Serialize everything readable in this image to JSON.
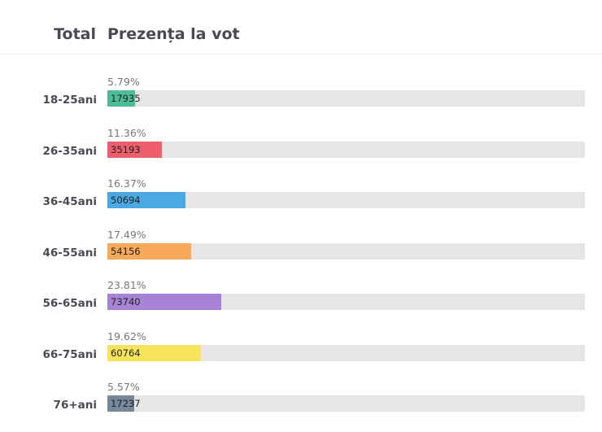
{
  "header": {
    "total_label": "Total",
    "title": "Prezența la vot"
  },
  "chart_data": {
    "type": "bar",
    "orientation": "horizontal",
    "title": "Prezența la vot",
    "categories": [
      "18-25ani",
      "26-35ani",
      "36-45ani",
      "46-55ani",
      "56-65ani",
      "66-75ani",
      "76+ani"
    ],
    "values": [
      17935,
      35193,
      50694,
      54156,
      73740,
      60764,
      17237
    ],
    "percent_labels": [
      "5.79%",
      "11.36%",
      "16.37%",
      "17.49%",
      "23.81%",
      "19.62%",
      "5.57%"
    ],
    "percents": [
      5.79,
      11.36,
      16.37,
      17.49,
      23.81,
      19.62,
      5.57
    ],
    "colors": [
      "#4dbd98",
      "#ee5d6c",
      "#4aa8e3",
      "#f8a95a",
      "#a683d6",
      "#f7e45a",
      "#778899"
    ],
    "xlim": [
      0,
      100
    ]
  }
}
